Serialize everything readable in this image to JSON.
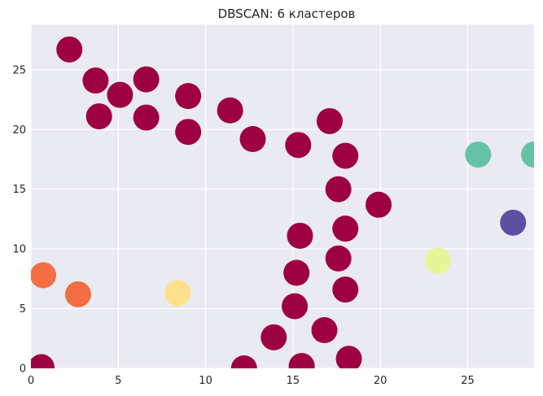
{
  "chart_data": {
    "type": "scatter",
    "title": "DBSCAN: 6 кластеров",
    "xlabel": "",
    "ylabel": "",
    "xlim": [
      0,
      28.8
    ],
    "ylim": [
      0,
      28.8
    ],
    "x_ticks": [
      0,
      5,
      10,
      15,
      20,
      25
    ],
    "y_ticks": [
      0,
      5,
      10,
      15,
      20,
      25
    ],
    "grid": true,
    "background_color": "#EAEAF2",
    "grid_color": "#FFFFFF",
    "cluster_colors": {
      "burgundy": "#9E0142",
      "orange_red": "#F46D43",
      "yellow": "#FEE08B",
      "lime": "#E6F598",
      "teal": "#66C2A5",
      "purple": "#5E4FA2"
    },
    "series": [
      {
        "color": "#9E0142",
        "points": [
          [
            2.2,
            26.7
          ],
          [
            3.7,
            24.1
          ],
          [
            5.1,
            22.9
          ],
          [
            6.6,
            24.2
          ],
          [
            3.9,
            21.1
          ],
          [
            6.6,
            21.0
          ],
          [
            9.0,
            22.8
          ],
          [
            9.0,
            19.8
          ],
          [
            11.4,
            21.6
          ],
          [
            12.7,
            19.2
          ],
          [
            15.3,
            18.7
          ],
          [
            17.1,
            20.7
          ],
          [
            18.0,
            17.8
          ],
          [
            17.6,
            15.0
          ],
          [
            19.9,
            13.7
          ],
          [
            18.0,
            11.7
          ],
          [
            15.4,
            11.1
          ],
          [
            17.6,
            9.2
          ],
          [
            15.2,
            8.0
          ],
          [
            18.0,
            6.6
          ],
          [
            15.1,
            5.2
          ],
          [
            13.9,
            2.6
          ],
          [
            16.8,
            3.2
          ],
          [
            18.2,
            0.8
          ],
          [
            12.2,
            0.0
          ],
          [
            15.5,
            0.2
          ],
          [
            0.6,
            0.1
          ]
        ]
      },
      {
        "color": "#F46D43",
        "points": [
          [
            0.7,
            7.8
          ],
          [
            2.7,
            6.2
          ]
        ]
      },
      {
        "color": "#FEE08B",
        "points": [
          [
            8.4,
            6.3
          ]
        ]
      },
      {
        "color": "#E6F598",
        "points": [
          [
            23.3,
            9.0
          ]
        ]
      },
      {
        "color": "#66C2A5",
        "points": [
          [
            25.6,
            17.9
          ],
          [
            28.8,
            17.9
          ]
        ]
      },
      {
        "color": "#5E4FA2",
        "points": [
          [
            27.6,
            12.2
          ]
        ]
      }
    ]
  }
}
